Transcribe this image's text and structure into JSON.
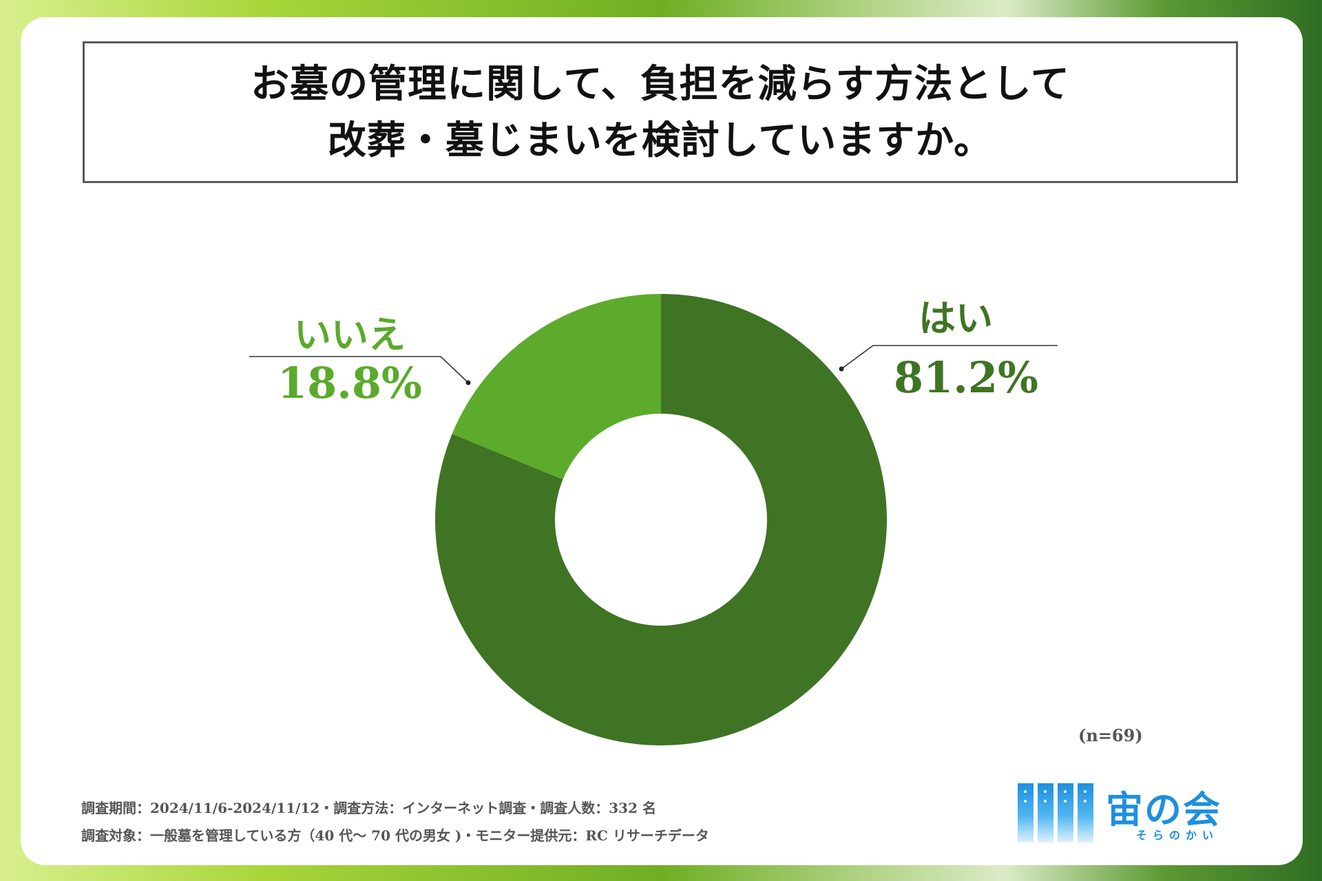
{
  "title": {
    "line1": "お墓の管理に関して、負担を減らす方法として",
    "line2": "改葬・墓じまいを検討していますか。"
  },
  "chart_data": {
    "type": "pie",
    "variant": "donut",
    "title": "お墓の管理に関して、負担を減らす方法として改葬・墓じまいを検討していますか。",
    "slices": [
      {
        "label": "はい",
        "value": 81.2,
        "value_label": "81.2%",
        "color": "#3f7424"
      },
      {
        "label": "いいえ",
        "value": 18.8,
        "value_label": "18.8%",
        "color": "#5dab2c"
      }
    ],
    "start_angle": "12 o'clock",
    "direction": "clockwise",
    "sample_size": "(n=69)"
  },
  "footnotes": {
    "line1": "調査期間：2024/11/6-2024/11/12・調査方法：インターネット調査・調査人数：332 名",
    "line2": "調査対象：一般墓を管理している方（40 代～ 70 代の男女 )・モニター提供元：RC リサーチデータ"
  },
  "logo": {
    "name": "宙の会",
    "kana": "そらのかい",
    "color": "#1e8fe0"
  }
}
